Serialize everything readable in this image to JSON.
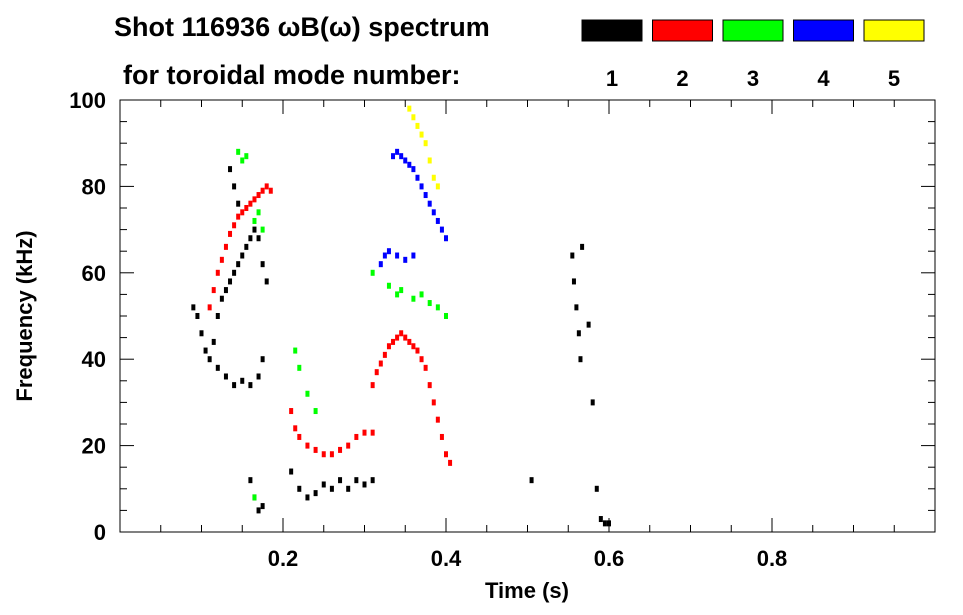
{
  "chart_data": {
    "type": "scatter",
    "title_line1": "Shot 116936 ωB(ω) spectrum",
    "title_line2": "for toroidal mode number:",
    "xlabel": "Time (s)",
    "ylabel": "Frequency (kHz)",
    "xlim": [
      0.0,
      1.0
    ],
    "ylim": [
      0,
      100
    ],
    "xticks": [
      0.2,
      0.4,
      0.6,
      0.8
    ],
    "xtick_labels": [
      "0.2",
      "0.4",
      "0.6",
      "0.8"
    ],
    "yticks": [
      0,
      20,
      40,
      60,
      80,
      100
    ],
    "ytick_labels": [
      "0",
      "20",
      "40",
      "60",
      "80",
      "100"
    ],
    "grid": false,
    "legend_placement": "top-right",
    "legend": [
      {
        "label": "1",
        "color": "#000000"
      },
      {
        "label": "2",
        "color": "#ff0000"
      },
      {
        "label": "3",
        "color": "#00ff00"
      },
      {
        "label": "4",
        "color": "#0000ff"
      },
      {
        "label": "5",
        "color": "#ffff00"
      }
    ],
    "series": [
      {
        "name": "1",
        "color": "#000000",
        "points": [
          [
            0.09,
            52
          ],
          [
            0.095,
            50
          ],
          [
            0.1,
            46
          ],
          [
            0.105,
            42
          ],
          [
            0.11,
            40
          ],
          [
            0.115,
            44
          ],
          [
            0.12,
            50
          ],
          [
            0.125,
            54
          ],
          [
            0.13,
            56
          ],
          [
            0.135,
            58
          ],
          [
            0.14,
            60
          ],
          [
            0.145,
            62
          ],
          [
            0.15,
            64
          ],
          [
            0.155,
            66
          ],
          [
            0.16,
            68
          ],
          [
            0.165,
            70
          ],
          [
            0.17,
            68
          ],
          [
            0.175,
            62
          ],
          [
            0.18,
            58
          ],
          [
            0.12,
            38
          ],
          [
            0.13,
            36
          ],
          [
            0.14,
            34
          ],
          [
            0.15,
            35
          ],
          [
            0.16,
            34
          ],
          [
            0.17,
            36
          ],
          [
            0.175,
            40
          ],
          [
            0.135,
            84
          ],
          [
            0.14,
            80
          ],
          [
            0.145,
            76
          ],
          [
            0.16,
            12
          ],
          [
            0.165,
            8
          ],
          [
            0.17,
            5
          ],
          [
            0.175,
            6
          ],
          [
            0.21,
            14
          ],
          [
            0.22,
            10
          ],
          [
            0.23,
            8
          ],
          [
            0.24,
            9
          ],
          [
            0.25,
            11
          ],
          [
            0.26,
            10
          ],
          [
            0.27,
            12
          ],
          [
            0.28,
            10
          ],
          [
            0.29,
            12
          ],
          [
            0.3,
            11
          ],
          [
            0.31,
            12
          ],
          [
            0.555,
            64
          ],
          [
            0.557,
            58
          ],
          [
            0.56,
            52
          ],
          [
            0.563,
            46
          ],
          [
            0.565,
            40
          ],
          [
            0.567,
            66
          ],
          [
            0.575,
            48
          ],
          [
            0.58,
            30
          ],
          [
            0.585,
            10
          ],
          [
            0.59,
            3
          ],
          [
            0.595,
            2
          ],
          [
            0.6,
            2
          ],
          [
            0.505,
            12
          ]
        ]
      },
      {
        "name": "2",
        "color": "#ff0000",
        "points": [
          [
            0.11,
            52
          ],
          [
            0.115,
            56
          ],
          [
            0.12,
            60
          ],
          [
            0.125,
            63
          ],
          [
            0.13,
            66
          ],
          [
            0.135,
            69
          ],
          [
            0.14,
            71
          ],
          [
            0.145,
            73
          ],
          [
            0.15,
            74
          ],
          [
            0.155,
            75
          ],
          [
            0.16,
            76
          ],
          [
            0.165,
            77
          ],
          [
            0.17,
            78
          ],
          [
            0.175,
            79
          ],
          [
            0.18,
            80
          ],
          [
            0.185,
            79
          ],
          [
            0.21,
            28
          ],
          [
            0.215,
            24
          ],
          [
            0.22,
            22
          ],
          [
            0.23,
            20
          ],
          [
            0.24,
            19
          ],
          [
            0.25,
            18
          ],
          [
            0.26,
            18
          ],
          [
            0.27,
            19
          ],
          [
            0.28,
            20
          ],
          [
            0.29,
            22
          ],
          [
            0.3,
            23
          ],
          [
            0.31,
            23
          ],
          [
            0.31,
            34
          ],
          [
            0.315,
            37
          ],
          [
            0.32,
            39
          ],
          [
            0.325,
            41
          ],
          [
            0.33,
            43
          ],
          [
            0.335,
            44
          ],
          [
            0.34,
            45
          ],
          [
            0.345,
            46
          ],
          [
            0.35,
            45
          ],
          [
            0.355,
            44
          ],
          [
            0.36,
            43
          ],
          [
            0.365,
            42
          ],
          [
            0.37,
            40
          ],
          [
            0.375,
            38
          ],
          [
            0.38,
            34
          ],
          [
            0.385,
            30
          ],
          [
            0.39,
            26
          ],
          [
            0.395,
            22
          ],
          [
            0.4,
            18
          ],
          [
            0.405,
            16
          ]
        ]
      },
      {
        "name": "3",
        "color": "#00ff00",
        "points": [
          [
            0.145,
            88
          ],
          [
            0.15,
            86
          ],
          [
            0.155,
            87
          ],
          [
            0.165,
            72
          ],
          [
            0.17,
            74
          ],
          [
            0.175,
            70
          ],
          [
            0.215,
            42
          ],
          [
            0.22,
            38
          ],
          [
            0.23,
            32
          ],
          [
            0.24,
            28
          ],
          [
            0.31,
            60
          ],
          [
            0.33,
            57
          ],
          [
            0.34,
            55
          ],
          [
            0.345,
            56
          ],
          [
            0.36,
            54
          ],
          [
            0.37,
            55
          ],
          [
            0.38,
            53
          ],
          [
            0.39,
            52
          ],
          [
            0.4,
            50
          ],
          [
            0.165,
            8
          ]
        ]
      },
      {
        "name": "4",
        "color": "#0000ff",
        "points": [
          [
            0.335,
            87
          ],
          [
            0.34,
            88
          ],
          [
            0.345,
            87
          ],
          [
            0.35,
            86
          ],
          [
            0.355,
            85
          ],
          [
            0.36,
            84
          ],
          [
            0.365,
            82
          ],
          [
            0.37,
            80
          ],
          [
            0.375,
            78
          ],
          [
            0.38,
            76
          ],
          [
            0.385,
            74
          ],
          [
            0.39,
            72
          ],
          [
            0.395,
            70
          ],
          [
            0.4,
            68
          ],
          [
            0.32,
            62
          ],
          [
            0.325,
            64
          ],
          [
            0.33,
            65
          ],
          [
            0.34,
            64
          ],
          [
            0.35,
            63
          ],
          [
            0.36,
            64
          ]
        ]
      },
      {
        "name": "5",
        "color": "#ffff00",
        "points": [
          [
            0.355,
            98
          ],
          [
            0.36,
            96
          ],
          [
            0.365,
            94
          ],
          [
            0.37,
            92
          ],
          [
            0.375,
            90
          ],
          [
            0.38,
            86
          ],
          [
            0.385,
            82
          ],
          [
            0.39,
            80
          ]
        ]
      }
    ]
  }
}
